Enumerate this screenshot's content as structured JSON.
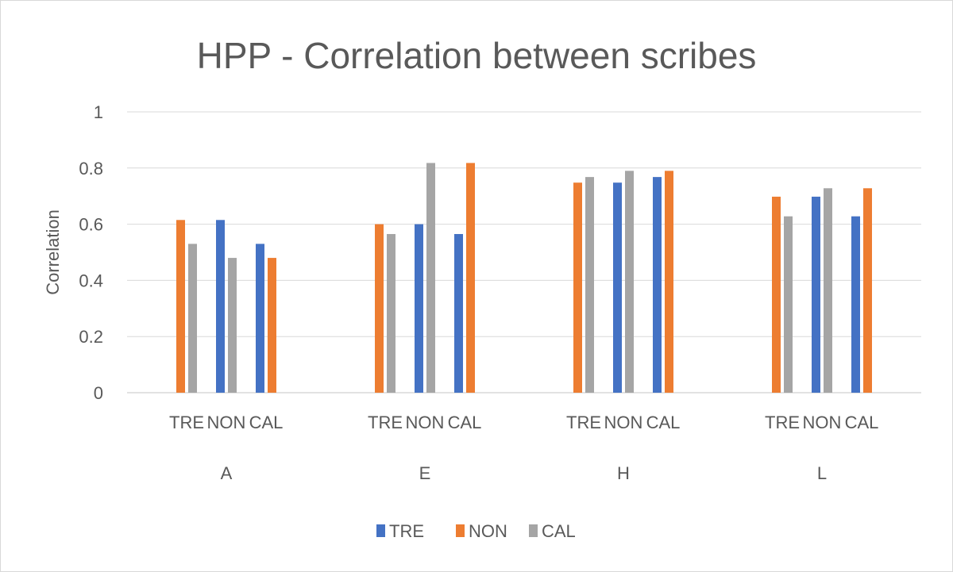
{
  "chart_data": {
    "type": "bar",
    "title": "HPP - Correlation between scribes",
    "xlabel": "",
    "ylabel": "Correlation",
    "ylim": [
      0,
      1
    ],
    "yticks": [
      0,
      0.2,
      0.4,
      0.6,
      0.8,
      1
    ],
    "yticks_labels": [
      "0",
      "0.2",
      "0.4",
      "0.6",
      "0.8",
      "1"
    ],
    "grid": true,
    "legend_position": "bottom",
    "groups": [
      "A",
      "E",
      "H",
      "L"
    ],
    "subcategories": [
      "TRE",
      "NON",
      "CAL"
    ],
    "series": [
      {
        "name": "TRE",
        "color": "#4472c4",
        "values": [
          [
            null,
            0.615,
            0.53
          ],
          [
            null,
            0.6,
            0.565
          ],
          [
            null,
            0.748,
            0.768
          ],
          [
            null,
            0.698,
            0.628
          ]
        ]
      },
      {
        "name": "NON",
        "color": "#ed7d31",
        "values": [
          [
            0.615,
            null,
            0.48
          ],
          [
            0.6,
            null,
            0.818
          ],
          [
            0.748,
            null,
            0.79
          ],
          [
            0.698,
            null,
            0.728
          ]
        ]
      },
      {
        "name": "CAL",
        "color": "#a5a5a5",
        "values": [
          [
            0.53,
            0.48,
            null
          ],
          [
            0.565,
            0.818,
            null
          ],
          [
            0.768,
            0.79,
            null
          ],
          [
            0.628,
            0.728,
            null
          ]
        ]
      }
    ]
  }
}
